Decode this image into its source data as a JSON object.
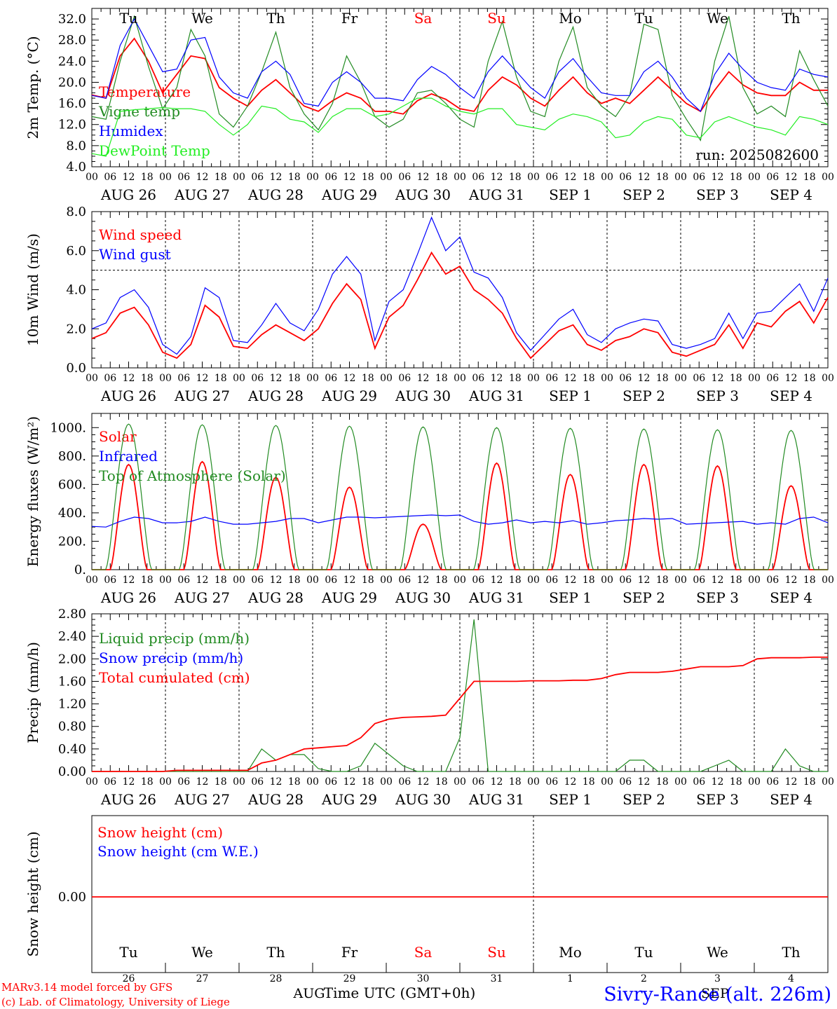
{
  "colors": {
    "red": "#ff0000",
    "blue": "#0000ff",
    "green": "#228b22",
    "lightgreen": "#22ee22",
    "black": "#000000"
  },
  "days": [
    "Tu",
    "We",
    "Th",
    "Fr",
    "Sa",
    "Su",
    "Mo",
    "Tu",
    "We",
    "Th"
  ],
  "weekend_days": [
    "Sa",
    "Su"
  ],
  "dates": [
    "AUG 26",
    "AUG 27",
    "AUG 28",
    "AUG 29",
    "AUG 30",
    "AUG 31",
    "SEP  1",
    "SEP  2",
    "SEP  3",
    "SEP  4"
  ],
  "hour_ticks": [
    "00",
    "06",
    "12",
    "18"
  ],
  "hour_end": "00",
  "bottom_day_numbers": [
    "26",
    "27",
    "28",
    "29",
    "30",
    "31",
    "1",
    "2",
    "3",
    "4"
  ],
  "bottom_month_left": "AUG",
  "bottom_month_right": "SEP",
  "x_axis_title": "Time UTC (GMT+0h)",
  "footer": {
    "line1": "MARv3.14 model forced by GFS",
    "line2": "(c) Lab. of Climatology, University of Liege"
  },
  "station": "Sivry-Rance (alt. 226m)",
  "run_label": "run: 2025082600",
  "chart_data": [
    {
      "type": "line",
      "ylabel": "2m Temp. (°C)",
      "ylim": [
        4,
        34
      ],
      "yticks": [
        "4.0",
        "8.0",
        "12.0",
        "16.0",
        "20.0",
        "24.0",
        "28.0",
        "32.0"
      ],
      "yvals": [
        4,
        8,
        12,
        16,
        20,
        24,
        28,
        32
      ],
      "x_hours_step": 6,
      "series": [
        {
          "name": "Temperature",
          "color": "red",
          "values": [
            17.6,
            17.0,
            25.0,
            28.3,
            24.0,
            18.0,
            21.5,
            25.0,
            24.5,
            19.0,
            17.0,
            15.5,
            18.5,
            20.5,
            18.0,
            15.5,
            14.5,
            16.5,
            18.0,
            17.0,
            14.5,
            14.5,
            14.0,
            16.5,
            17.8,
            16.8,
            15.0,
            14.5,
            18.5,
            21.0,
            19.5,
            17.0,
            15.5,
            18.5,
            21.0,
            18.0,
            16.0,
            17.0,
            16.0,
            18.5,
            21.0,
            18.5,
            16.0,
            14.5,
            18.5,
            22.0,
            19.5,
            18.0,
            17.5,
            17.5,
            20.0,
            18.5,
            18.5
          ]
        },
        {
          "name": "Vigne temp",
          "color": "green",
          "values": [
            13.5,
            13.0,
            24.0,
            32.5,
            23.0,
            15.0,
            19.0,
            30.0,
            25.0,
            14.0,
            11.5,
            15.5,
            22.0,
            29.5,
            19.0,
            14.0,
            11.0,
            16.0,
            25.0,
            20.0,
            13.5,
            11.5,
            13.0,
            18.0,
            18.5,
            16.0,
            13.0,
            11.5,
            24.0,
            31.5,
            21.0,
            14.5,
            13.5,
            24.0,
            30.5,
            19.0,
            15.5,
            13.5,
            17.5,
            31.0,
            30.0,
            17.5,
            13.0,
            9.0,
            24.0,
            32.5,
            19.0,
            14.0,
            15.5,
            13.5,
            26.0,
            20.5,
            15.5
          ]
        },
        {
          "name": "Humidex",
          "color": "blue",
          "values": [
            17.5,
            17.0,
            27.0,
            32.0,
            27.0,
            22.0,
            22.5,
            28.0,
            28.5,
            21.0,
            18.0,
            17.0,
            22.0,
            24.0,
            21.5,
            16.0,
            15.5,
            20.0,
            22.0,
            20.0,
            17.0,
            17.0,
            16.5,
            20.5,
            23.0,
            21.5,
            19.0,
            17.0,
            22.0,
            25.0,
            22.0,
            19.0,
            17.0,
            22.0,
            24.5,
            21.0,
            18.0,
            17.5,
            17.5,
            22.0,
            24.0,
            21.0,
            17.0,
            14.5,
            21.5,
            25.5,
            22.5,
            20.0,
            19.0,
            18.5,
            22.5,
            21.5,
            21.0
          ]
        },
        {
          "name": "DewPoint Temp",
          "color": "lightgreen",
          "values": [
            6.5,
            6.0,
            14.5,
            14.8,
            15.0,
            15.2,
            15.0,
            15.0,
            14.5,
            12.0,
            10.0,
            12.0,
            15.5,
            15.0,
            13.0,
            12.5,
            10.5,
            13.5,
            15.0,
            15.0,
            13.5,
            14.0,
            15.5,
            17.0,
            17.0,
            15.5,
            14.5,
            14.0,
            15.0,
            15.0,
            12.0,
            11.5,
            11.0,
            13.0,
            14.0,
            13.5,
            12.5,
            9.5,
            10.0,
            12.5,
            13.5,
            13.0,
            10.0,
            9.5,
            12.5,
            13.5,
            12.5,
            11.5,
            11.0,
            10.0,
            13.5,
            13.0,
            12.0
          ]
        }
      ]
    },
    {
      "type": "line",
      "ylabel": "10m Wind (m/s)",
      "ylim": [
        0,
        8
      ],
      "yticks": [
        "0.0",
        "2.0",
        "4.0",
        "6.0",
        "8.0"
      ],
      "yvals": [
        0,
        2,
        4,
        6,
        8
      ],
      "ref_line": 5,
      "series": [
        {
          "name": "Wind speed",
          "color": "red",
          "values": [
            1.5,
            1.8,
            2.8,
            3.1,
            2.2,
            0.8,
            0.5,
            1.2,
            3.2,
            2.6,
            1.1,
            1.0,
            1.7,
            2.2,
            1.8,
            1.4,
            2.0,
            3.3,
            4.3,
            3.5,
            1.0,
            2.6,
            3.2,
            4.5,
            5.9,
            4.8,
            5.2,
            4.0,
            3.5,
            2.8,
            1.5,
            0.5,
            1.2,
            1.9,
            2.2,
            1.2,
            0.9,
            1.4,
            1.6,
            2.0,
            1.8,
            0.8,
            0.6,
            0.9,
            1.2,
            2.2,
            1.0,
            2.3,
            2.1,
            2.9,
            3.4,
            2.3,
            3.6
          ]
        },
        {
          "name": "Wind gust",
          "color": "blue",
          "values": [
            2.0,
            2.3,
            3.6,
            4.0,
            3.1,
            1.2,
            0.7,
            1.6,
            4.1,
            3.6,
            1.4,
            1.3,
            2.2,
            3.3,
            2.3,
            1.9,
            3.0,
            4.8,
            5.7,
            4.8,
            1.4,
            3.4,
            4.0,
            5.8,
            7.7,
            6.0,
            6.7,
            4.9,
            4.6,
            3.6,
            1.8,
            0.9,
            1.7,
            2.5,
            3.0,
            1.7,
            1.3,
            2.0,
            2.3,
            2.5,
            2.4,
            1.2,
            1.0,
            1.2,
            1.5,
            2.8,
            1.5,
            2.8,
            2.9,
            3.6,
            4.3,
            2.9,
            4.6
          ]
        }
      ]
    },
    {
      "type": "line",
      "ylabel": "Energy fluxes (W/m²)",
      "ylim": [
        0,
        1100
      ],
      "yticks": [
        "0.",
        "200.",
        "400.",
        "600.",
        "800.",
        "1000."
      ],
      "yvals": [
        0,
        200,
        400,
        600,
        800,
        1000
      ],
      "series": [
        {
          "name": "Solar",
          "color": "red",
          "peaks": [
            740,
            760,
            650,
            580,
            320,
            750,
            670,
            740,
            730,
            590
          ]
        },
        {
          "name": "Infrared",
          "color": "blue",
          "values": [
            305,
            300,
            340,
            370,
            360,
            330,
            330,
            340,
            370,
            340,
            320,
            320,
            330,
            340,
            360,
            360,
            330,
            350,
            370,
            370,
            365,
            370,
            375,
            380,
            385,
            380,
            385,
            340,
            320,
            330,
            350,
            330,
            340,
            330,
            345,
            320,
            330,
            345,
            350,
            360,
            355,
            360,
            320,
            325,
            330,
            335,
            340,
            320,
            330,
            320,
            360,
            370,
            330
          ]
        },
        {
          "name": "Top of Atmosphere (Solar)",
          "color": "green",
          "peaks": [
            1025,
            1020,
            1015,
            1010,
            1005,
            1000,
            995,
            990,
            985,
            980
          ]
        }
      ]
    },
    {
      "type": "line",
      "ylabel": "Precip (mm/h)",
      "ylim": [
        0,
        2.8
      ],
      "yticks": [
        "0.00",
        "0.40",
        "0.80",
        "1.20",
        "1.60",
        "2.00",
        "2.40",
        "2.80"
      ],
      "yvals": [
        0,
        0.4,
        0.8,
        1.2,
        1.6,
        2.0,
        2.4,
        2.8
      ],
      "series": [
        {
          "name": "Liquid precip (mm/h)",
          "color": "green",
          "values": [
            0,
            0,
            0,
            0,
            0,
            0,
            0,
            0,
            0,
            0,
            0,
            0,
            0.4,
            0.2,
            0.3,
            0.3,
            0.05,
            0,
            0,
            0.1,
            0.5,
            0.3,
            0.1,
            0,
            0,
            0,
            0.6,
            2.7,
            0,
            0,
            0,
            0,
            0,
            0,
            0,
            0,
            0,
            0,
            0.2,
            0.2,
            0,
            0,
            0,
            0,
            0.1,
            0.2,
            0,
            0,
            0,
            0.4,
            0.1,
            0,
            0
          ]
        },
        {
          "name": "Snow precip (mm/h)",
          "color": "blue",
          "values": []
        },
        {
          "name": "Total cumulated (cm)",
          "color": "red",
          "values": [
            0,
            0,
            0,
            0,
            0,
            0,
            0.02,
            0.02,
            0.02,
            0.02,
            0.02,
            0.02,
            0.15,
            0.2,
            0.3,
            0.4,
            0.42,
            0.44,
            0.46,
            0.6,
            0.85,
            0.93,
            0.96,
            0.97,
            0.98,
            1.0,
            1.3,
            1.6,
            1.6,
            1.6,
            1.6,
            1.61,
            1.61,
            1.61,
            1.62,
            1.62,
            1.65,
            1.72,
            1.76,
            1.76,
            1.76,
            1.78,
            1.82,
            1.86,
            1.86,
            1.86,
            1.88,
            2.0,
            2.02,
            2.02,
            2.02,
            2.03,
            2.03
          ]
        }
      ]
    },
    {
      "type": "line",
      "ylabel": "Snow height (cm)",
      "yticks": [
        "0.00"
      ],
      "yvals": [
        0
      ],
      "series": [
        {
          "name": "Snow height (cm)",
          "color": "red",
          "values": [
            0,
            0
          ]
        },
        {
          "name": "Snow height (cm W.E.)",
          "color": "blue",
          "values": []
        }
      ]
    }
  ]
}
